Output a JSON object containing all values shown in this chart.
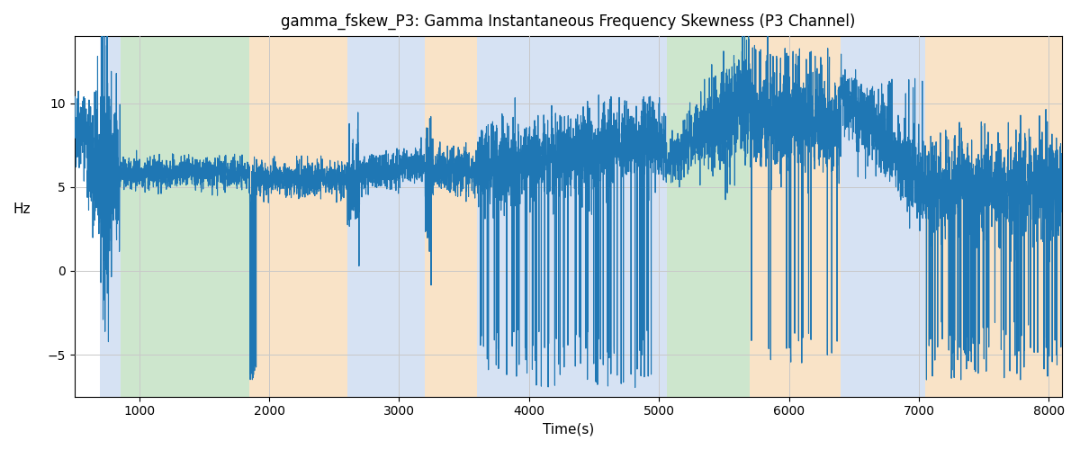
{
  "title": "gamma_fskew_P3: Gamma Instantaneous Frequency Skewness (P3 Channel)",
  "xlabel": "Time(s)",
  "ylabel": "Hz",
  "xlim": [
    500,
    8100
  ],
  "ylim": [
    -7.5,
    14.0
  ],
  "line_color": "#1f77b4",
  "line_width": 0.8,
  "background_color": "#ffffff",
  "grid_color": "#c8c8c8",
  "bands": [
    {
      "start": 700,
      "end": 855,
      "color": "#aec6e8",
      "alpha": 0.5
    },
    {
      "start": 855,
      "end": 1850,
      "color": "#90c990",
      "alpha": 0.45
    },
    {
      "start": 1850,
      "end": 2600,
      "color": "#f5c990",
      "alpha": 0.5
    },
    {
      "start": 2600,
      "end": 3200,
      "color": "#aec6e8",
      "alpha": 0.5
    },
    {
      "start": 3200,
      "end": 3600,
      "color": "#f5c990",
      "alpha": 0.5
    },
    {
      "start": 3600,
      "end": 4960,
      "color": "#aec6e8",
      "alpha": 0.5
    },
    {
      "start": 4960,
      "end": 5060,
      "color": "#aec6e8",
      "alpha": 0.5
    },
    {
      "start": 5060,
      "end": 5700,
      "color": "#90c990",
      "alpha": 0.45
    },
    {
      "start": 5700,
      "end": 6400,
      "color": "#f5c990",
      "alpha": 0.5
    },
    {
      "start": 6400,
      "end": 7050,
      "color": "#aec6e8",
      "alpha": 0.5
    },
    {
      "start": 7050,
      "end": 8200,
      "color": "#f5c990",
      "alpha": 0.5
    }
  ],
  "xticks": [
    1000,
    2000,
    3000,
    4000,
    5000,
    6000,
    7000,
    8000
  ],
  "yticks": [
    -5,
    0,
    5,
    10
  ],
  "seed": 42,
  "t_start": 500,
  "t_end": 8100,
  "n_points": 7601
}
